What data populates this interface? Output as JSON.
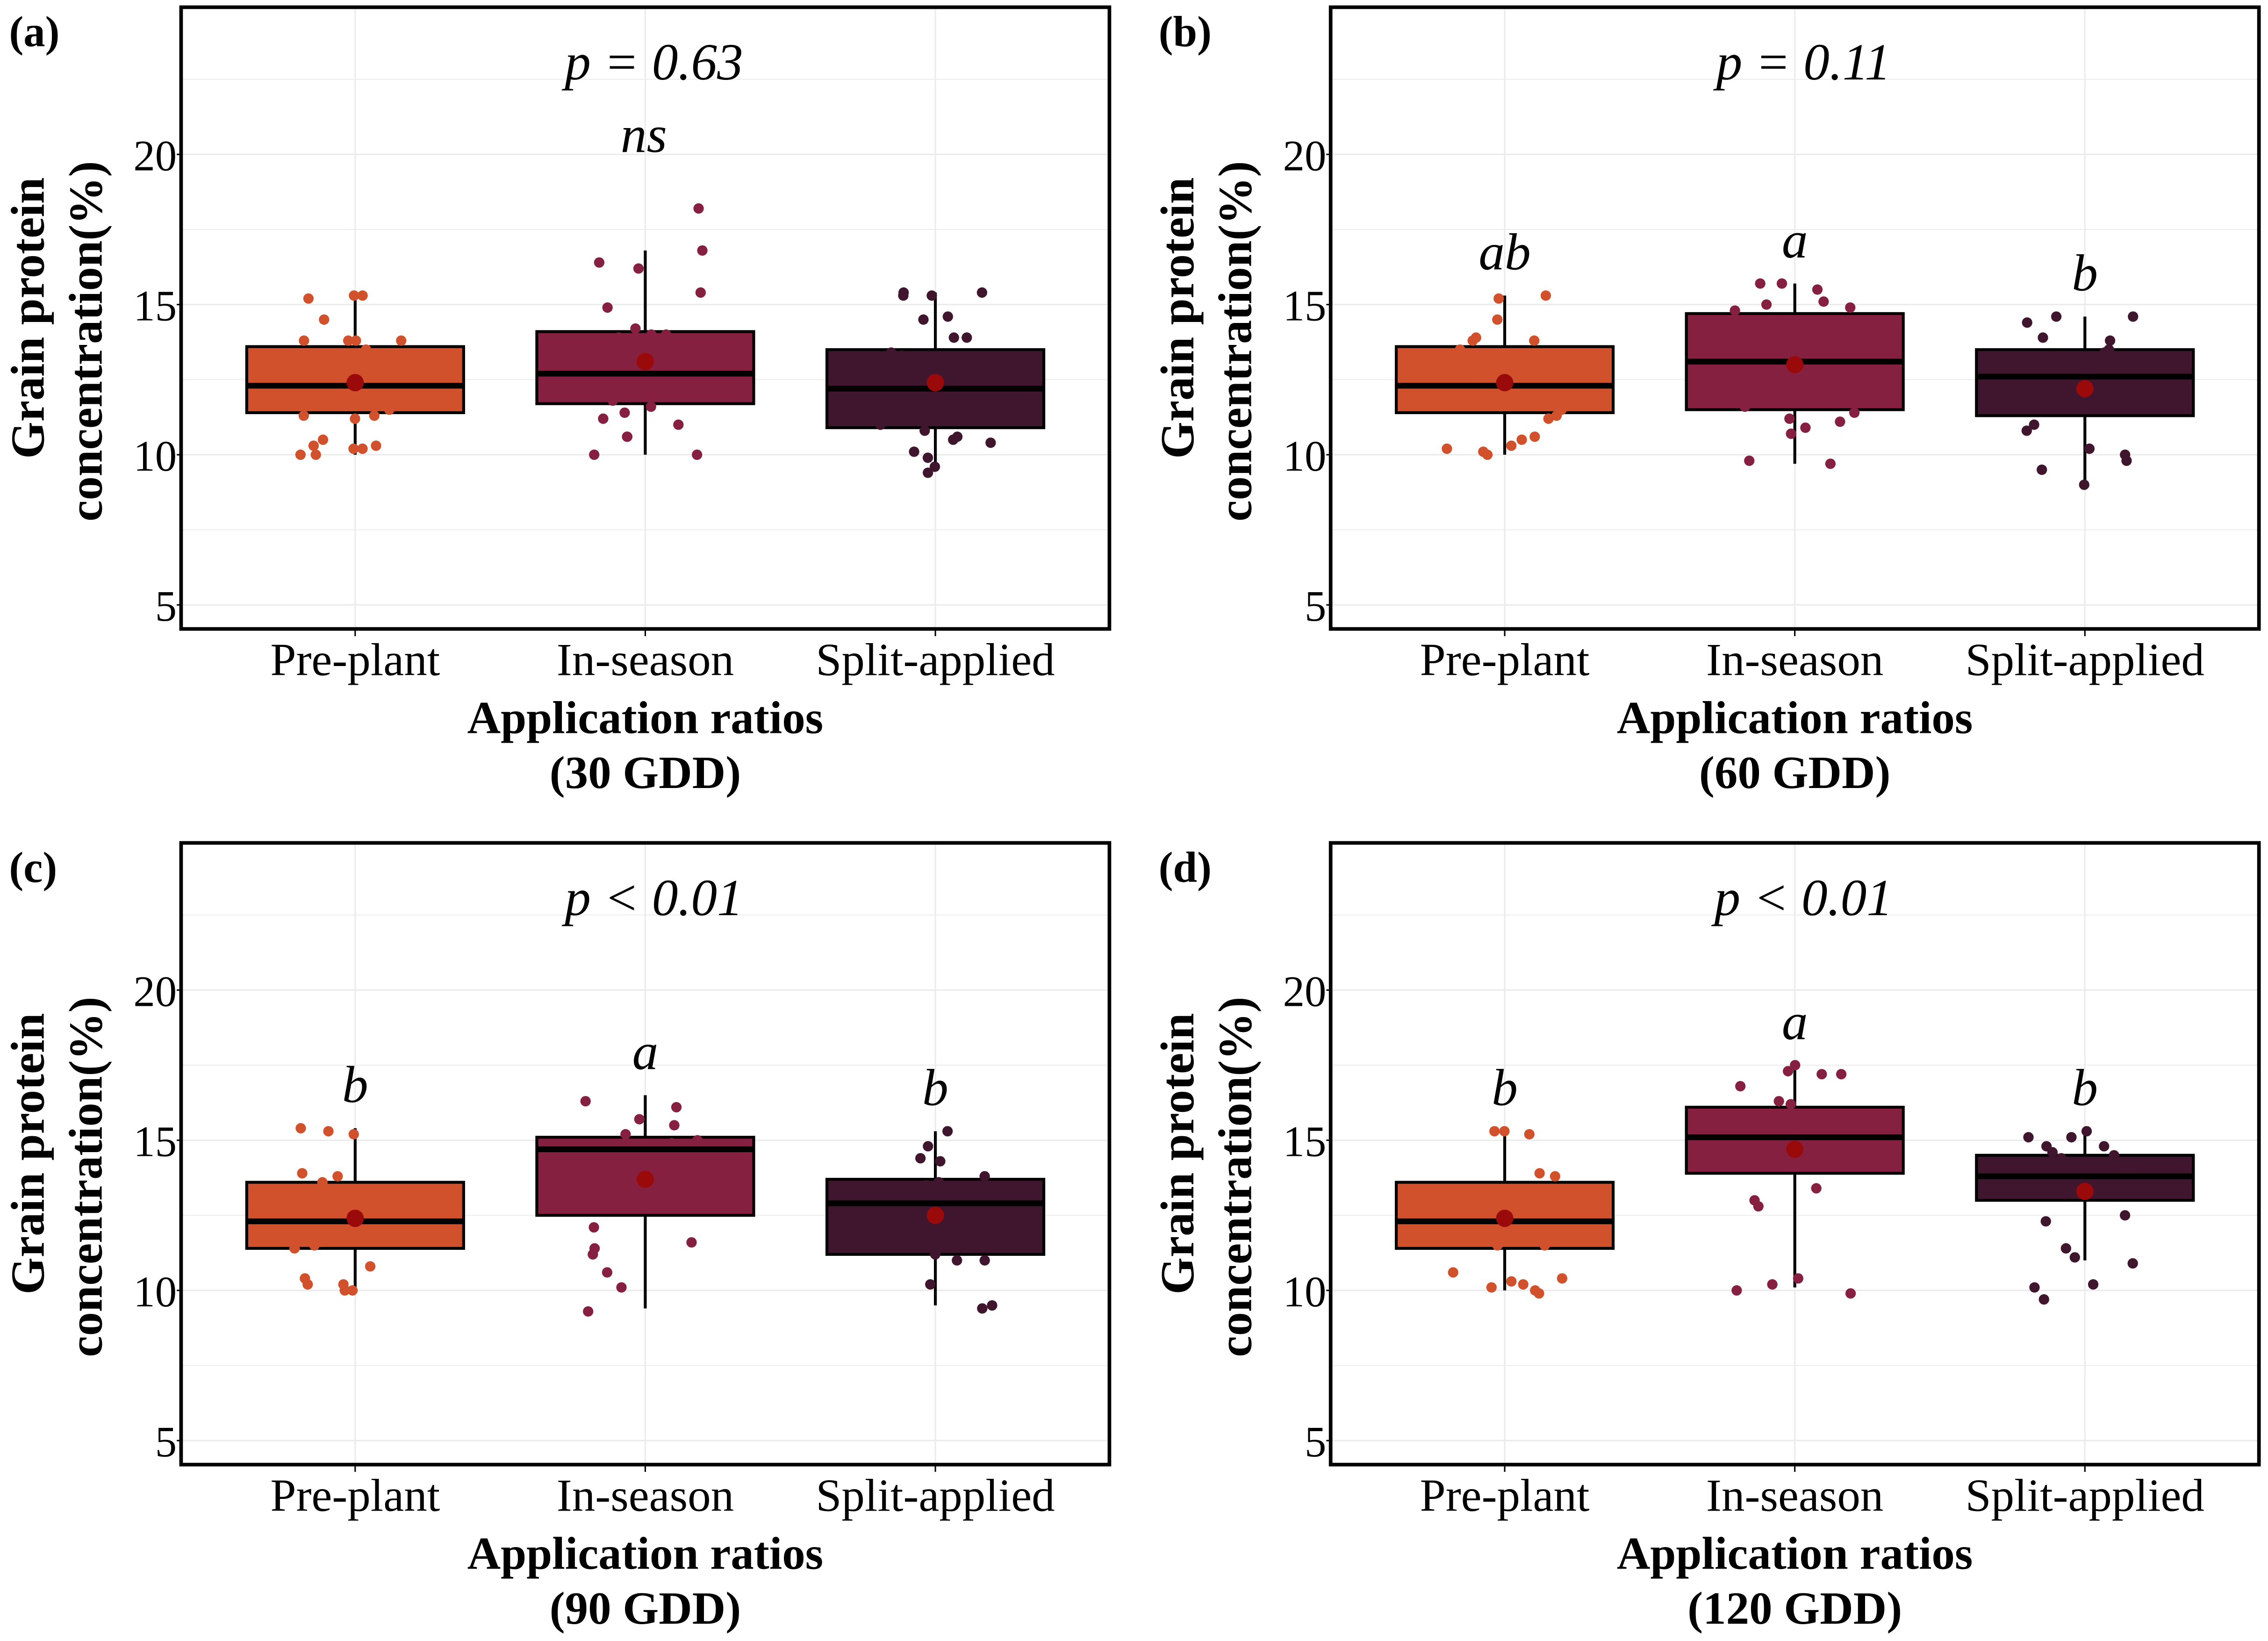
{
  "chart_data": [
    {
      "type": "box",
      "panel_label": "(a)",
      "title": "p = 0.63",
      "subtitle": "ns",
      "xlabel_line1": "Application ratios",
      "xlabel_line2": "(30 GDD)",
      "ylabel_line1": "Grain protein",
      "ylabel_line2": "concentration(%)",
      "ylim": [
        4.2,
        24.9
      ],
      "yticks": [
        "5",
        "10",
        "15",
        "20"
      ],
      "grid": true,
      "categories": [
        "Pre-plant",
        "In-season",
        "Split-applied"
      ],
      "letters": [
        "",
        "",
        ""
      ],
      "boxes": [
        {
          "min": 10.0,
          "q1": 11.4,
          "median": 12.3,
          "q3": 13.6,
          "max": 15.3,
          "mean": 12.4,
          "points": [
            15.3,
            15.3,
            15.2,
            14.5,
            13.8,
            13.8,
            13.8,
            13.8,
            13.5,
            12.3,
            12.0,
            11.5,
            11.3,
            11.3,
            11.2,
            10.5,
            10.3,
            10.3,
            10.2,
            10.2,
            10.0,
            10.0
          ]
        },
        {
          "min": 10.0,
          "q1": 11.7,
          "median": 12.7,
          "q3": 14.1,
          "max": 16.8,
          "mean": 13.1,
          "points": [
            18.2,
            16.8,
            16.4,
            16.2,
            15.4,
            14.9,
            14.2,
            14.0,
            14.0,
            13.9,
            12.8,
            12.6,
            12.5,
            11.8,
            11.6,
            11.4,
            11.2,
            11.0,
            10.6,
            10.6,
            10.0,
            10.0
          ]
        },
        {
          "min": 9.5,
          "q1": 10.9,
          "median": 12.2,
          "q3": 13.5,
          "max": 15.4,
          "mean": 12.4,
          "points": [
            15.4,
            15.4,
            15.3,
            15.3,
            14.6,
            14.5,
            13.9,
            13.9,
            13.4,
            13.3,
            12.1,
            12.0,
            11.0,
            10.8,
            10.6,
            10.5,
            10.4,
            10.1,
            9.9,
            9.6,
            9.4
          ]
        }
      ]
    },
    {
      "type": "box",
      "panel_label": "(b)",
      "title": "p = 0.11",
      "subtitle": "",
      "xlabel_line1": "Application ratios",
      "xlabel_line2": "(60 GDD)",
      "ylabel_line1": "Grain protein",
      "ylabel_line2": "concentration(%)",
      "ylim": [
        4.2,
        24.9
      ],
      "yticks": [
        "5",
        "10",
        "15",
        "20"
      ],
      "grid": true,
      "categories": [
        "Pre-plant",
        "In-season",
        "Split-applied"
      ],
      "letters": [
        "ab",
        "a",
        "b"
      ],
      "boxes": [
        {
          "min": 10.0,
          "q1": 11.4,
          "median": 12.3,
          "q3": 13.6,
          "max": 15.3,
          "mean": 12.4,
          "points": [
            15.3,
            15.2,
            14.5,
            13.9,
            13.8,
            13.8,
            13.5,
            12.6,
            12.4,
            12.0,
            11.5,
            11.3,
            11.2,
            10.6,
            10.5,
            10.3,
            10.2,
            10.1,
            10.0
          ]
        },
        {
          "min": 9.7,
          "q1": 11.5,
          "median": 13.1,
          "q3": 14.7,
          "max": 15.7,
          "mean": 13.0,
          "points": [
            15.7,
            15.7,
            15.5,
            15.1,
            15.0,
            14.9,
            14.8,
            13.2,
            13.0,
            12.8,
            11.6,
            11.4,
            11.2,
            11.1,
            10.9,
            10.7,
            9.8,
            9.7
          ]
        },
        {
          "min": 9.1,
          "q1": 11.3,
          "median": 12.6,
          "q3": 13.5,
          "max": 14.6,
          "mean": 12.2,
          "points": [
            14.6,
            14.6,
            14.4,
            13.9,
            13.8,
            13.5,
            13.4,
            12.6,
            12.5,
            12.4,
            12.2,
            11.6,
            11.0,
            10.8,
            10.2,
            10.0,
            9.8,
            9.5,
            9.0
          ]
        }
      ]
    },
    {
      "type": "box",
      "panel_label": "(c)",
      "title": "p < 0.01",
      "subtitle": "",
      "xlabel_line1": "Application ratios",
      "xlabel_line2": "(90 GDD)",
      "ylabel_line1": "Grain protein",
      "ylabel_line2": "concentration(%)",
      "ylim": [
        4.2,
        24.9
      ],
      "yticks": [
        "5",
        "10",
        "15",
        "20"
      ],
      "grid": true,
      "categories": [
        "Pre-plant",
        "In-season",
        "Split-applied"
      ],
      "letters": [
        "b",
        "a",
        "b"
      ],
      "boxes": [
        {
          "min": 10.0,
          "q1": 11.4,
          "median": 12.3,
          "q3": 13.6,
          "max": 15.4,
          "mean": 12.4,
          "points": [
            15.4,
            15.3,
            15.2,
            13.9,
            13.8,
            13.6,
            13.0,
            12.5,
            12.0,
            11.5,
            11.4,
            10.8,
            10.4,
            10.2,
            10.2,
            10.0,
            10.0
          ]
        },
        {
          "min": 9.4,
          "q1": 12.5,
          "median": 14.7,
          "q3": 15.1,
          "max": 16.5,
          "mean": 13.7,
          "points": [
            16.3,
            16.1,
            15.7,
            15.5,
            15.2,
            15.0,
            14.9,
            14.6,
            14.4,
            12.8,
            12.1,
            11.6,
            11.4,
            11.2,
            10.6,
            10.1,
            9.3
          ]
        },
        {
          "min": 9.5,
          "q1": 11.2,
          "median": 12.9,
          "q3": 13.7,
          "max": 15.3,
          "mean": 12.5,
          "points": [
            15.3,
            14.8,
            14.4,
            14.3,
            13.8,
            13.6,
            13.5,
            12.9,
            12.2,
            11.6,
            11.2,
            11.0,
            11.0,
            10.2,
            9.5,
            9.4
          ]
        }
      ]
    },
    {
      "type": "box",
      "panel_label": "(d)",
      "title": "p < 0.01",
      "subtitle": "",
      "xlabel_line1": "Application ratios",
      "xlabel_line2": "(120 GDD)",
      "ylabel_line1": "Grain protein",
      "ylabel_line2": "concentration(%)",
      "ylim": [
        4.2,
        24.9
      ],
      "yticks": [
        "5",
        "10",
        "15",
        "20"
      ],
      "grid": true,
      "categories": [
        "Pre-plant",
        "In-season",
        "Split-applied"
      ],
      "letters": [
        "b",
        "a",
        "b"
      ],
      "boxes": [
        {
          "min": 10.0,
          "q1": 11.4,
          "median": 12.3,
          "q3": 13.6,
          "max": 15.3,
          "mean": 12.4,
          "points": [
            15.3,
            15.3,
            15.2,
            13.9,
            13.8,
            13.0,
            12.3,
            12.1,
            11.5,
            11.5,
            10.6,
            10.4,
            10.3,
            10.2,
            10.1,
            10.0,
            9.9
          ]
        },
        {
          "min": 10.1,
          "q1": 13.9,
          "median": 15.1,
          "q3": 16.1,
          "max": 17.5,
          "mean": 14.7,
          "points": [
            17.5,
            17.3,
            17.2,
            17.2,
            16.8,
            16.3,
            16.2,
            15.3,
            15.1,
            15.0,
            13.4,
            13.0,
            12.8,
            10.4,
            10.2,
            10.0,
            9.9
          ]
        },
        {
          "min": 11.0,
          "q1": 13.0,
          "median": 13.8,
          "q3": 14.5,
          "max": 15.3,
          "mean": 13.3,
          "points": [
            15.3,
            15.1,
            15.1,
            14.8,
            14.8,
            14.6,
            14.5,
            14.4,
            13.8,
            13.7,
            13.5,
            12.5,
            12.3,
            11.4,
            11.1,
            10.9,
            10.2,
            10.1,
            9.7
          ]
        }
      ]
    }
  ],
  "colors": {
    "groups": [
      "#D1512D",
      "#862040",
      "#40162E"
    ],
    "mean": "#9B0A0A",
    "grid": "#EBEBEB"
  }
}
